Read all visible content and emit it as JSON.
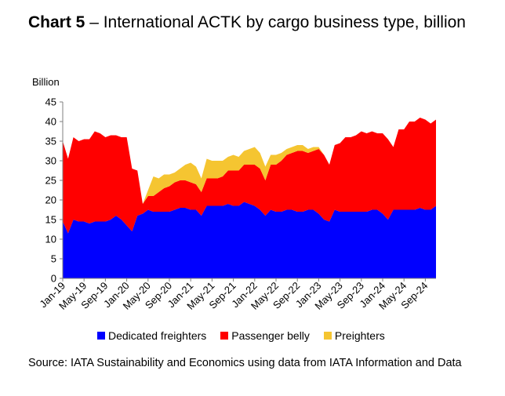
{
  "header": {
    "chart_label": "Chart 5",
    "title_rest": " – International ACTK by cargo business type, billion"
  },
  "source": "Source: IATA Sustainability and Economics using data from IATA Information and Data",
  "colors": {
    "dedicated": "#0000FF",
    "belly": "#FF0000",
    "preighters": "#F5C531",
    "axis": "#7F7F7F"
  },
  "chart_data": {
    "type": "area",
    "stacked": true,
    "ylabel": "Billion",
    "ylim": [
      0,
      45
    ],
    "yticks": [
      0,
      5,
      10,
      15,
      20,
      25,
      30,
      35,
      40,
      45
    ],
    "x_tick_labels": [
      "Jan-19",
      "May-19",
      "Sep-19",
      "Jan-20",
      "May-20",
      "Sep-20",
      "Jan-21",
      "May-21",
      "Sep-21",
      "Jan-22",
      "May-22",
      "Sep-22",
      "Jan-23",
      "May-23",
      "Sep-23",
      "Jan-24",
      "May-24",
      "Sep-24"
    ],
    "x_start": "Jan-19",
    "x_end": "Nov-24",
    "legend_position": "bottom",
    "grid": false,
    "series": [
      {
        "name": "Dedicated freighters",
        "values": [
          14.5,
          11.5,
          15,
          14.5,
          14.5,
          14,
          14.5,
          14.5,
          14.5,
          15,
          16,
          15,
          13.5,
          12,
          16,
          16.5,
          17.5,
          17,
          17,
          17,
          17,
          17.5,
          18,
          18,
          17.5,
          17.5,
          16,
          18.5,
          18.5,
          18.5,
          18.5,
          19,
          18.5,
          18.5,
          19.5,
          19,
          18.5,
          17.5,
          16,
          17.5,
          17,
          17,
          17.5,
          17.5,
          17,
          17,
          17.5,
          17.5,
          16.5,
          15,
          14.5,
          17.5,
          17,
          17,
          17,
          17,
          17,
          17,
          17.5,
          17.5,
          16.5,
          15,
          17.5,
          17.5,
          17.5,
          17.5,
          17.5,
          18,
          17.5,
          17.5,
          18.5
        ]
      },
      {
        "name": "Passenger belly",
        "values": [
          20.5,
          19,
          21,
          20.5,
          21,
          21.5,
          23,
          22.5,
          21.5,
          21.5,
          20.5,
          21,
          22.5,
          16,
          11.5,
          2.5,
          3.5,
          4,
          5,
          6,
          6.5,
          7,
          7,
          7,
          7,
          6.5,
          6,
          7,
          7,
          7,
          7.5,
          8.5,
          9,
          9,
          9.5,
          10,
          10.5,
          10.5,
          9,
          11.5,
          12,
          13,
          14,
          14.5,
          15.5,
          15.5,
          14.5,
          15,
          16.5,
          16.5,
          14.5,
          16.5,
          17.5,
          19,
          19,
          19.5,
          20.5,
          20,
          20,
          19.5,
          20.5,
          20.5,
          16,
          20.5,
          20.5,
          22.5,
          22.5,
          23,
          23,
          22,
          22
        ]
      },
      {
        "name": "Preighters",
        "values": [
          0,
          0,
          0,
          0,
          0,
          0,
          0,
          0,
          0,
          0,
          0,
          0,
          0,
          0,
          0,
          0,
          1.5,
          5,
          3.5,
          3.5,
          3,
          2.5,
          3,
          4,
          5,
          4.5,
          3.5,
          5,
          4.5,
          4.5,
          4,
          3.5,
          4,
          3.5,
          3.5,
          4,
          4.5,
          4,
          3.5,
          2.5,
          2.5,
          2,
          1.5,
          1.5,
          1.5,
          1.5,
          1,
          1,
          0.5,
          0,
          0,
          0,
          0,
          0,
          0,
          0,
          0,
          0,
          0,
          0,
          0,
          0,
          0,
          0,
          0,
          0,
          0,
          0,
          0,
          0,
          0
        ]
      }
    ]
  }
}
